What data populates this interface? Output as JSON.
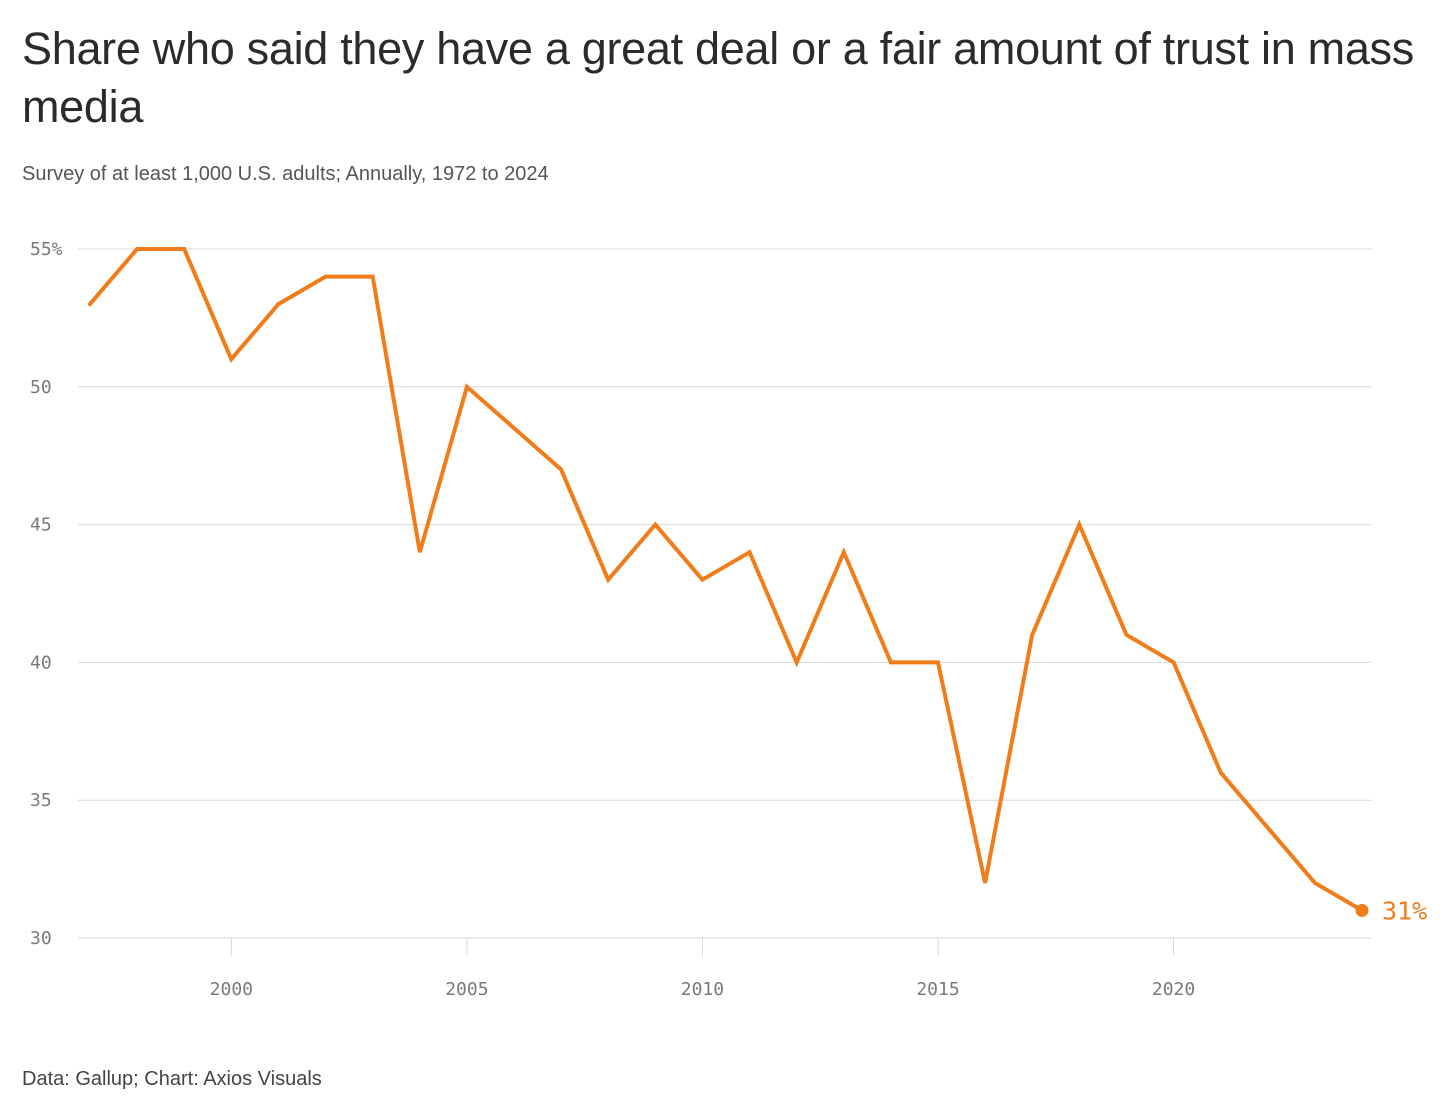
{
  "title": "Share who said they have a great deal or a fair amount of trust in mass media",
  "subtitle": "Survey of at least 1,000 U.S. adults; Annually, 1972 to 2024",
  "footer": "Data: Gallup; Chart: Axios Visuals",
  "colors": {
    "line": "#f07c1a",
    "grid": "#d9d9d9",
    "tick": "#7a7a7a"
  },
  "chart_data": {
    "type": "line",
    "title": "Share who said they have a great deal or a fair amount of trust in mass media",
    "xlabel": "",
    "ylabel": "",
    "xlim": [
      1997,
      2024
    ],
    "ylim": [
      30,
      55
    ],
    "grid": true,
    "y_ticks": [
      30,
      35,
      40,
      45,
      50,
      55
    ],
    "y_tick_labels": [
      "30",
      "35",
      "40",
      "45",
      "50",
      "55%"
    ],
    "x_ticks": [
      2000,
      2005,
      2010,
      2015,
      2020
    ],
    "x_tick_labels": [
      "2000",
      "2005",
      "2010",
      "2015",
      "2020"
    ],
    "series": [
      {
        "name": "Trust in mass media",
        "x": [
          1997,
          1998,
          1999,
          2000,
          2001,
          2002,
          2003,
          2004,
          2005,
          2006,
          2007,
          2008,
          2009,
          2010,
          2011,
          2012,
          2013,
          2014,
          2015,
          2016,
          2017,
          2018,
          2019,
          2020,
          2021,
          2022,
          2023,
          2024
        ],
        "values": [
          53,
          55,
          55,
          51,
          53,
          54,
          54,
          44,
          50,
          48.5,
          47,
          43,
          45,
          43,
          44,
          40,
          44,
          40,
          40,
          32,
          41,
          45,
          41,
          40,
          36,
          34,
          32,
          31
        ]
      }
    ],
    "end_label": "31%"
  }
}
